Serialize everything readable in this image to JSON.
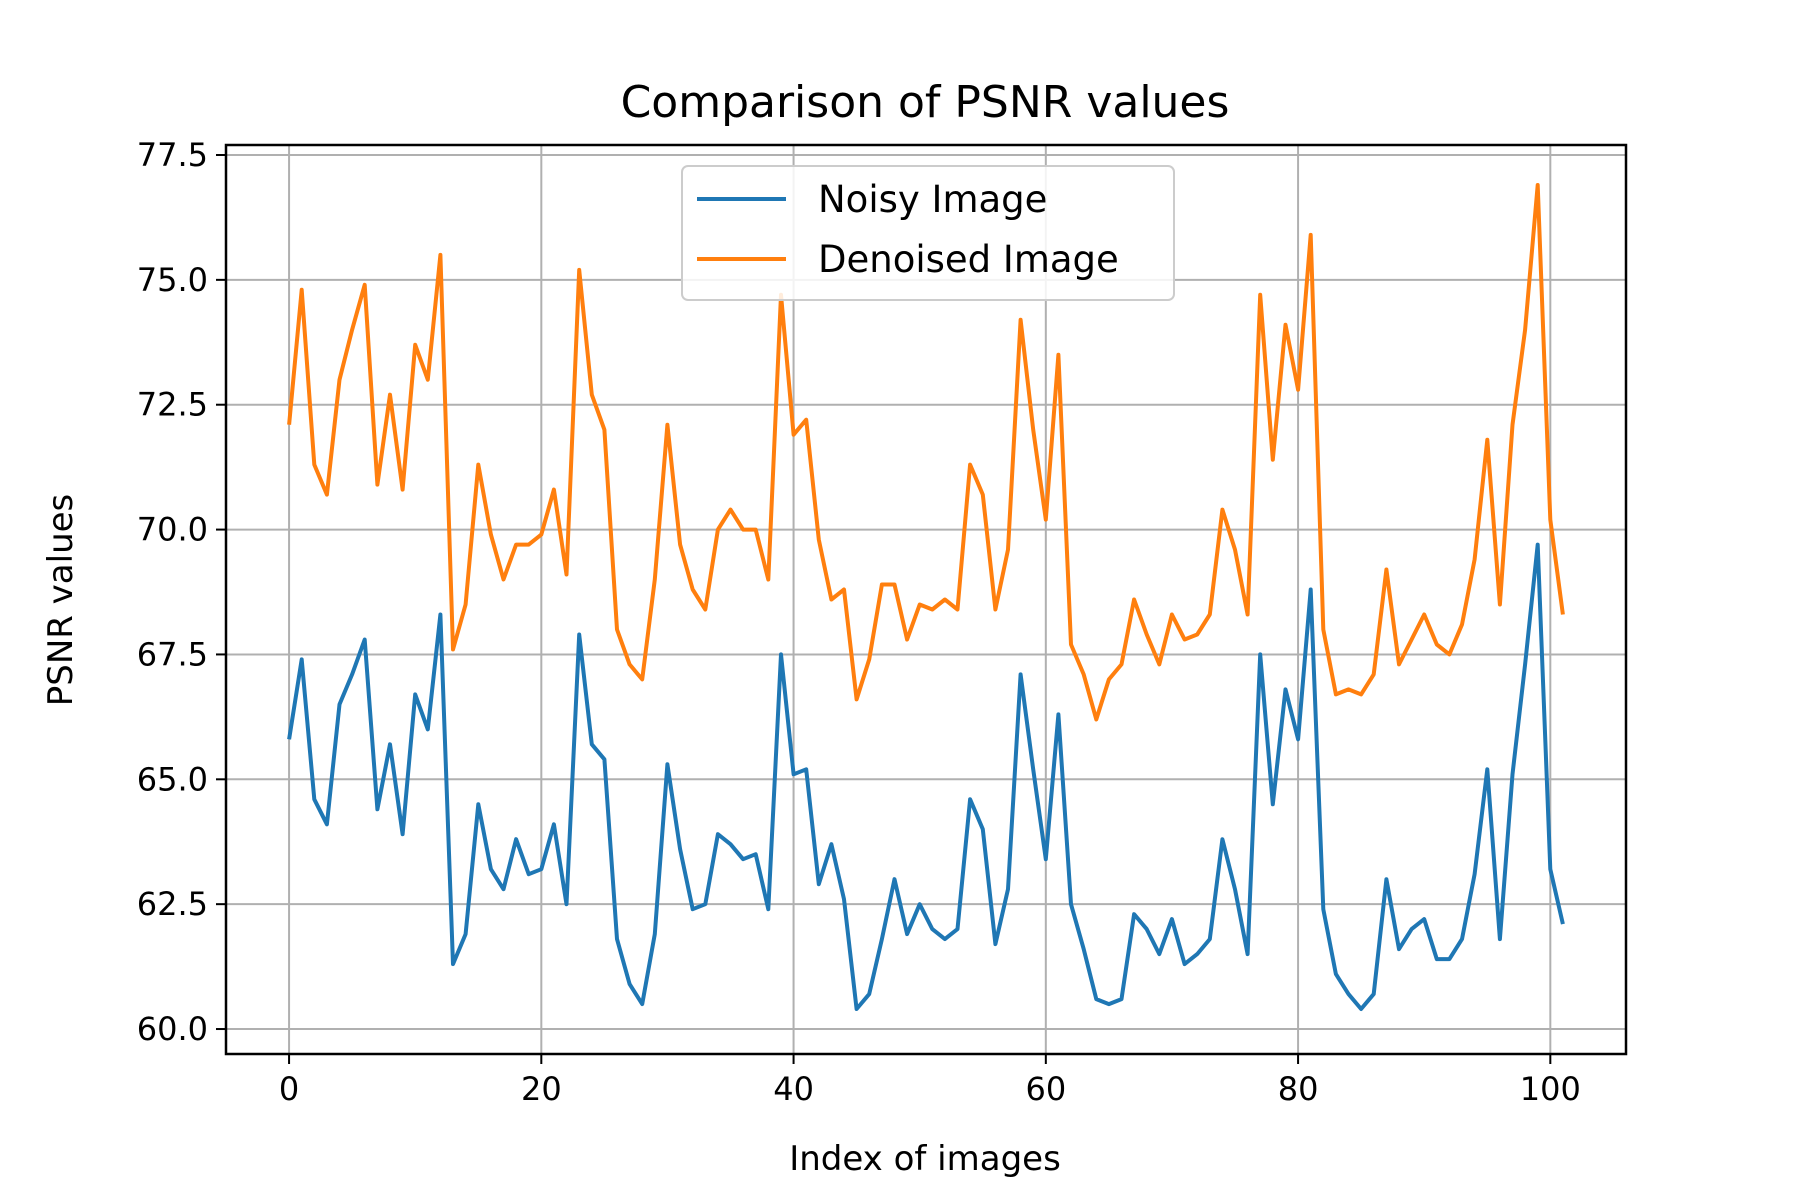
{
  "chart_data": {
    "type": "line",
    "title": "Comparison of PSNR values",
    "xlabel": "Index of images",
    "ylabel": "PSNR values",
    "xlim": [
      -5,
      106
    ],
    "ylim": [
      59.5,
      77.7
    ],
    "x_ticks": [
      0,
      20,
      40,
      60,
      80,
      100
    ],
    "x_tick_labels": [
      "0",
      "20",
      "40",
      "60",
      "80",
      "100"
    ],
    "y_ticks": [
      60.0,
      62.5,
      65.0,
      67.5,
      70.0,
      72.5,
      75.0,
      77.5
    ],
    "y_tick_labels": [
      "60.0",
      "62.5",
      "65.0",
      "67.5",
      "70.0",
      "72.5",
      "75.0",
      "77.5"
    ],
    "grid": true,
    "legend_position": "upper center",
    "series": [
      {
        "name": "Noisy Image",
        "color": "#1f77b4",
        "values": [
          65.8,
          67.4,
          64.6,
          64.1,
          66.5,
          67.1,
          67.8,
          64.4,
          65.7,
          63.9,
          66.7,
          66.0,
          68.3,
          61.3,
          61.9,
          64.5,
          63.2,
          62.8,
          63.8,
          63.1,
          63.2,
          64.1,
          62.5,
          67.9,
          65.7,
          65.4,
          61.8,
          60.9,
          60.5,
          61.9,
          65.3,
          63.6,
          62.4,
          62.5,
          63.9,
          63.7,
          63.4,
          63.5,
          62.4,
          67.5,
          65.1,
          65.2,
          62.9,
          63.7,
          62.6,
          60.4,
          60.7,
          61.8,
          63.0,
          61.9,
          62.5,
          62.0,
          61.8,
          62.0,
          64.6,
          64.0,
          61.7,
          62.8,
          67.1,
          65.2,
          63.4,
          66.3,
          62.5,
          61.6,
          60.6,
          60.5,
          60.6,
          62.3,
          62.0,
          61.5,
          62.2,
          61.3,
          61.5,
          61.8,
          63.8,
          62.8,
          61.5,
          67.5,
          64.5,
          66.8,
          65.8,
          68.8,
          62.4,
          61.1,
          60.7,
          60.4,
          60.7,
          63.0,
          61.6,
          62.0,
          62.2,
          61.4,
          61.4,
          61.8,
          63.1,
          65.2,
          61.8,
          65.1,
          67.3,
          69.7,
          63.2,
          62.1
        ]
      },
      {
        "name": "Denoised Image",
        "color": "#ff7f0e",
        "values": [
          72.1,
          74.8,
          71.3,
          70.7,
          73.0,
          74.0,
          74.9,
          70.9,
          72.7,
          70.8,
          73.7,
          73.0,
          75.5,
          67.6,
          68.5,
          71.3,
          69.9,
          69.0,
          69.7,
          69.7,
          69.9,
          70.8,
          69.1,
          75.2,
          72.7,
          72.0,
          68.0,
          67.3,
          67.0,
          69.0,
          72.1,
          69.7,
          68.8,
          68.4,
          70.0,
          70.4,
          70.0,
          70.0,
          69.0,
          74.7,
          71.9,
          72.2,
          69.8,
          68.6,
          68.8,
          66.6,
          67.4,
          68.9,
          68.9,
          67.8,
          68.5,
          68.4,
          68.6,
          68.4,
          71.3,
          70.7,
          68.4,
          69.6,
          74.2,
          72.0,
          70.2,
          73.5,
          67.7,
          67.1,
          66.2,
          67.0,
          67.3,
          68.6,
          67.9,
          67.3,
          68.3,
          67.8,
          67.9,
          68.3,
          70.4,
          69.6,
          68.3,
          74.7,
          71.4,
          74.1,
          72.8,
          75.9,
          68.0,
          66.7,
          66.8,
          66.7,
          67.1,
          69.2,
          67.3,
          67.8,
          68.3,
          67.7,
          67.5,
          68.1,
          69.4,
          71.8,
          68.5,
          72.1,
          74.0,
          76.9,
          70.2,
          68.3
        ]
      }
    ]
  }
}
